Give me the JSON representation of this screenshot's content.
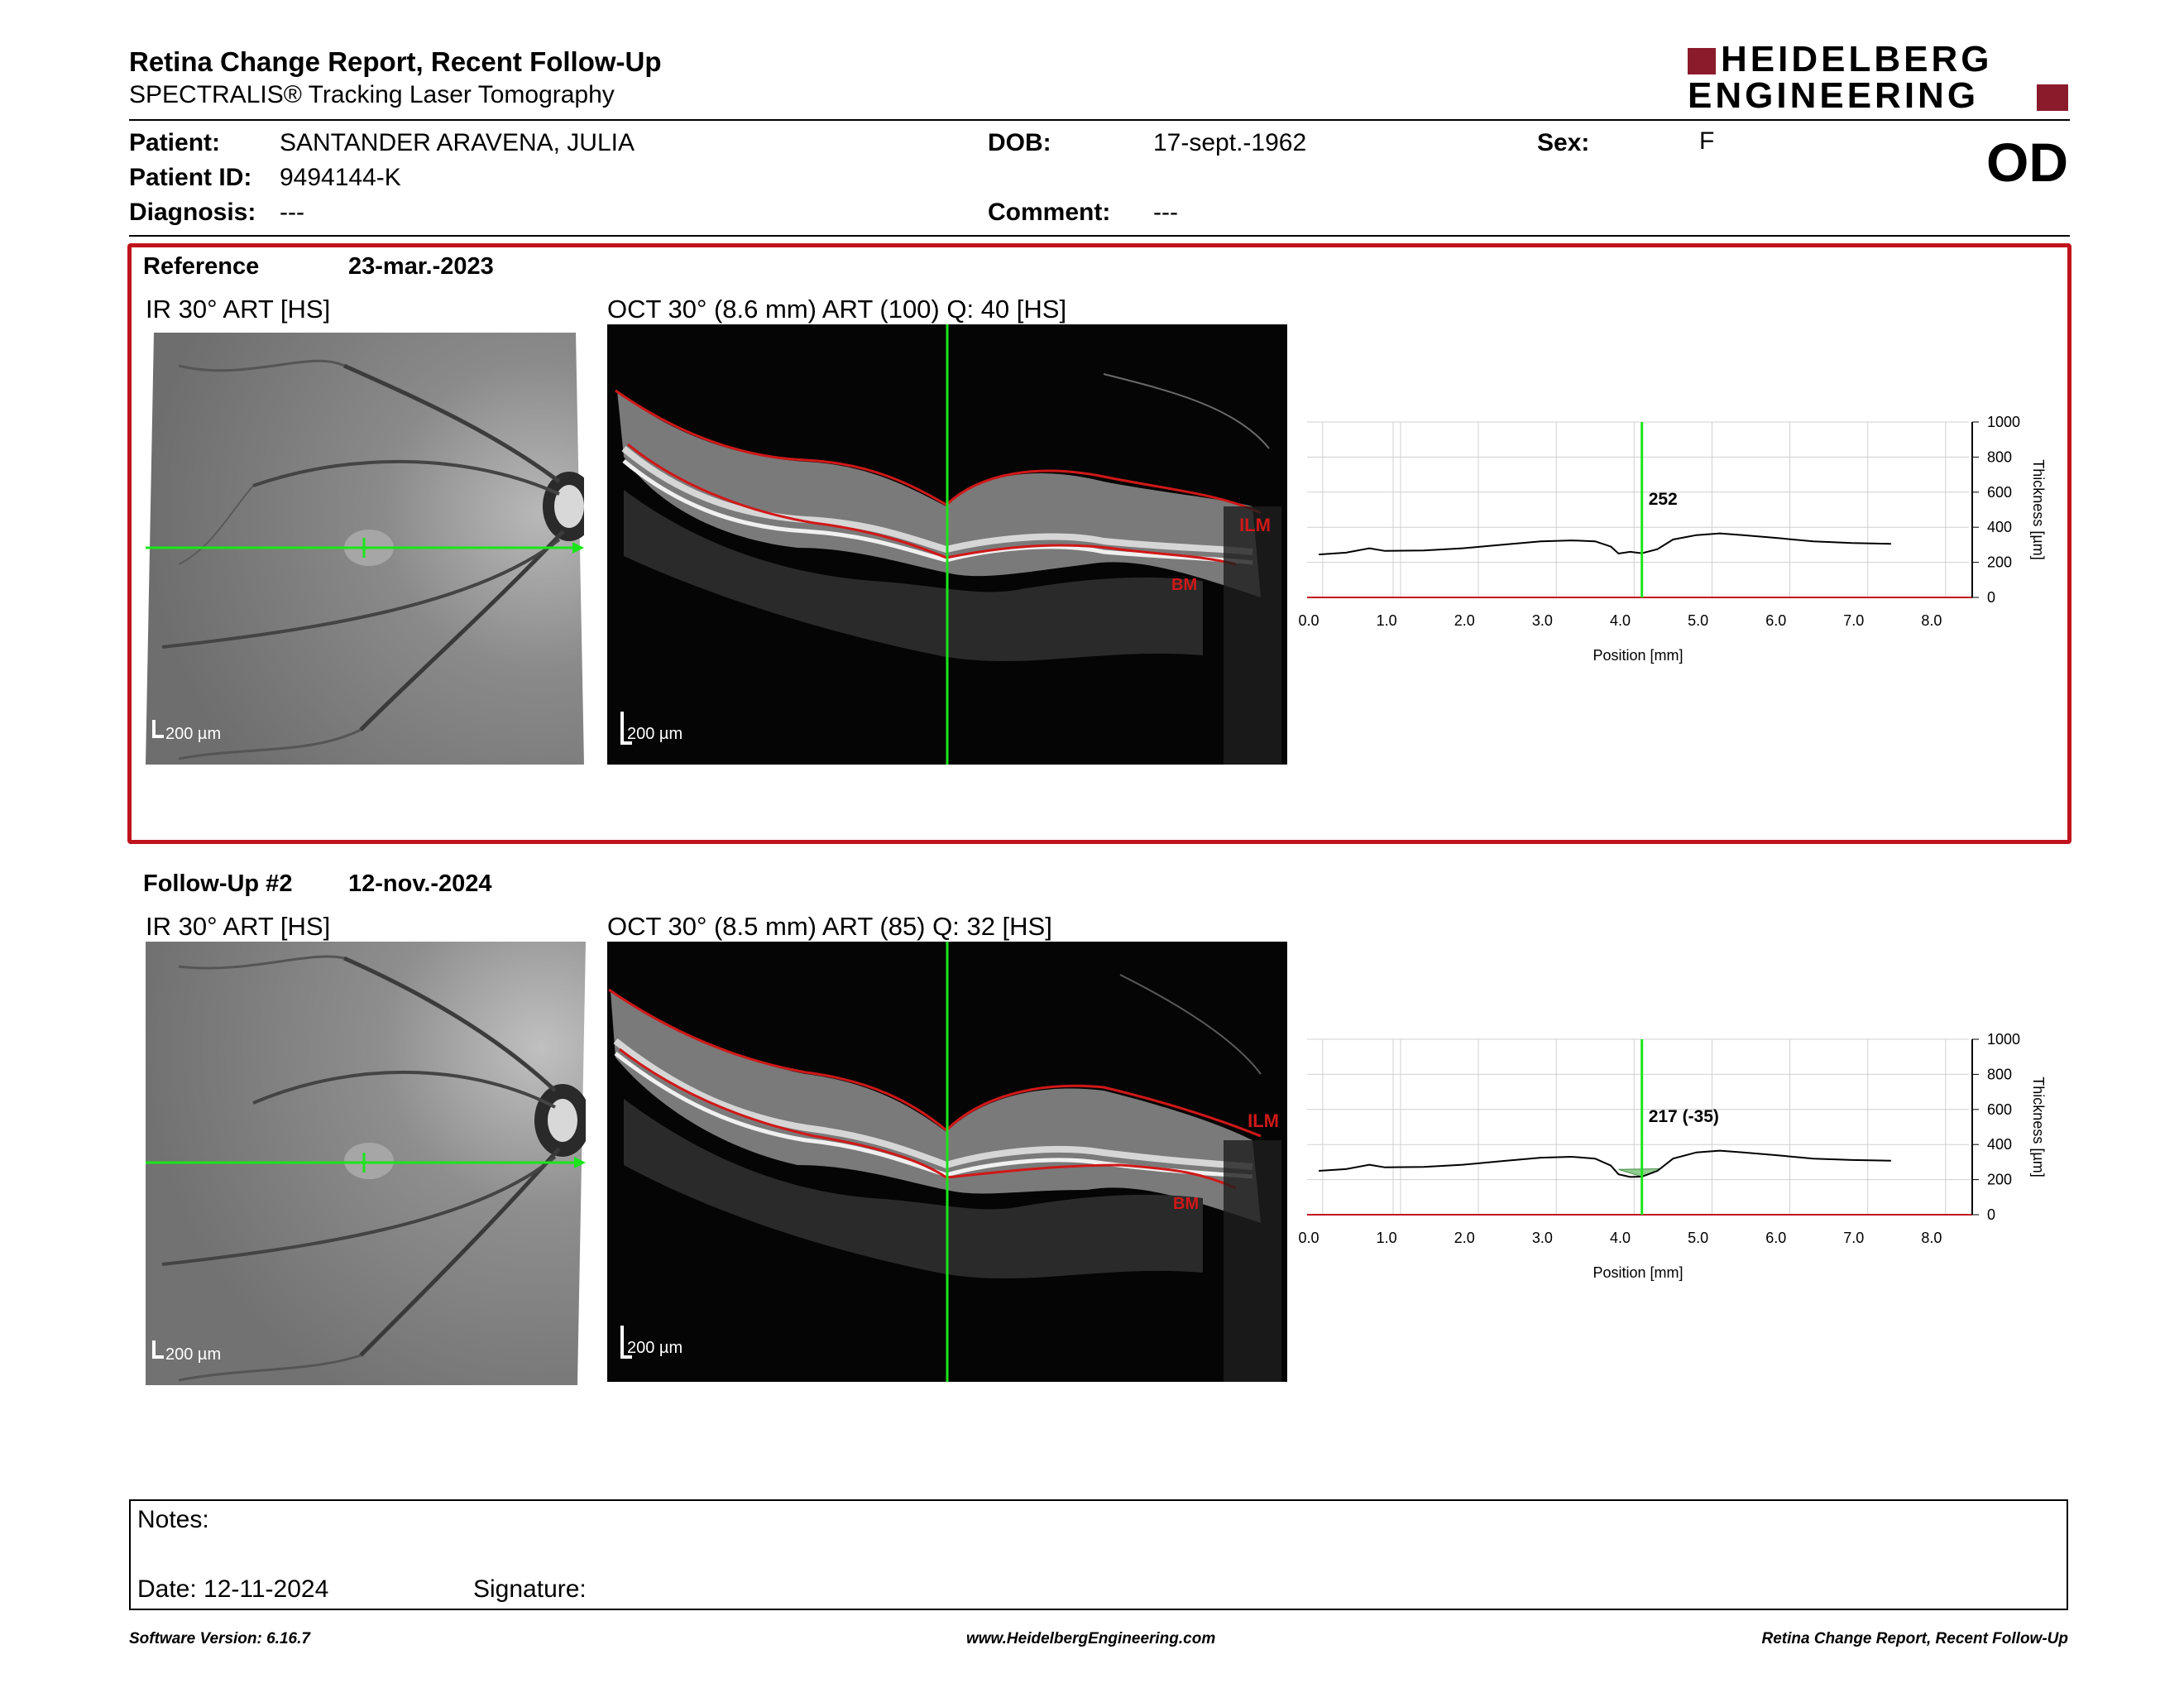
{
  "report": {
    "title": "Retina Change Report, Recent Follow-Up",
    "subtitle": "SPECTRALIS® Tracking Laser Tomography",
    "eye": "OD"
  },
  "logo": {
    "line1": "HEIDELBERG",
    "line2": "ENGINEERING",
    "color": "#8b1a2b"
  },
  "patient": {
    "name_label": "Patient:",
    "name": "SANTANDER ARAVENA, JULIA",
    "id_label": "Patient ID:",
    "id": "9494144-K",
    "diagnosis_label": "Diagnosis:",
    "diagnosis": "---",
    "dob_label": "DOB:",
    "dob": "17-sept.-1962",
    "comment_label": "Comment:",
    "comment": "---",
    "sex_label": "Sex:",
    "sex": "F"
  },
  "reference": {
    "label": "Reference",
    "date": "23-mar.-2023",
    "ir_caption": "IR 30° ART [HS]",
    "oct_caption": "OCT 30° (8.6 mm) ART (100) Q: 40 [HS]",
    "scale_ir": "200 µm",
    "scale_oct": "200 µm",
    "ilm": "ILM",
    "bm": "BM"
  },
  "followup": {
    "label": "Follow-Up #2",
    "date": "12-nov.-2024",
    "ir_caption": "IR 30° ART [HS]",
    "oct_caption": "OCT 30° (8.5 mm) ART (85) Q: 32 [HS]",
    "scale_ir": "200 µm",
    "scale_oct": "200 µm",
    "ilm": "ILM",
    "bm": "BM"
  },
  "chart_data": [
    {
      "type": "line",
      "xlabel": "Position [mm]",
      "ylabel": "Thickness [µm]",
      "xlim": [
        0,
        8.5
      ],
      "ylim": [
        0,
        1000
      ],
      "xticks": [
        "0.0",
        "1.0",
        "2.0",
        "3.0",
        "4.0",
        "5.0",
        "6.0",
        "7.0",
        "8.0"
      ],
      "yticks": [
        "0",
        "200",
        "400",
        "600",
        "800",
        "1000"
      ],
      "cursor_x": 4.3,
      "cursor_label": "252",
      "series": [
        {
          "x": [
            0.15,
            0.5,
            0.8,
            1.0,
            1.5,
            2.0,
            2.5,
            3.0,
            3.4,
            3.7,
            3.9,
            4.0,
            4.15,
            4.3,
            4.5,
            4.7,
            5.0,
            5.3,
            5.6,
            6.0,
            6.5,
            7.0,
            7.5
          ],
          "values": [
            245,
            255,
            280,
            265,
            268,
            280,
            300,
            320,
            325,
            320,
            290,
            250,
            260,
            252,
            275,
            330,
            355,
            365,
            355,
            340,
            320,
            310,
            305
          ]
        }
      ],
      "grid": true
    },
    {
      "type": "area",
      "xlabel": "Position [mm]",
      "ylabel": "Thickness [µm]",
      "xlim": [
        0,
        8.5
      ],
      "ylim": [
        0,
        1000
      ],
      "xticks": [
        "0.0",
        "1.0",
        "2.0",
        "3.0",
        "4.0",
        "5.0",
        "6.0",
        "7.0",
        "8.0"
      ],
      "yticks": [
        "0",
        "200",
        "400",
        "600",
        "800",
        "1000"
      ],
      "cursor_x": 4.3,
      "cursor_label": "217 (-35)",
      "series": [
        {
          "x": [
            0.15,
            0.5,
            0.8,
            1.0,
            1.5,
            2.0,
            2.5,
            3.0,
            3.4,
            3.7,
            3.9,
            4.0,
            4.15,
            4.3,
            4.5,
            4.7,
            5.0,
            5.3,
            5.6,
            6.0,
            6.5,
            7.0,
            7.5
          ],
          "values": [
            250,
            260,
            285,
            270,
            272,
            285,
            305,
            325,
            330,
            320,
            280,
            230,
            215,
            217,
            250,
            320,
            355,
            365,
            355,
            340,
            320,
            312,
            308
          ]
        }
      ],
      "change_fill_color": "#8fce8f",
      "grid": true
    }
  ],
  "notes": {
    "notes_label": "Notes:",
    "date_label": "Date: 12-11-2024",
    "signature_label": "Signature:"
  },
  "footer": {
    "version": "Software Version: 6.16.7",
    "website": "www.HeidelbergEngineering.com",
    "report_name": "Retina Change Report, Recent Follow-Up"
  },
  "colors": {
    "frame_red": "#c0141c",
    "scan_green": "#19e619",
    "segment_red": "#d01818"
  }
}
